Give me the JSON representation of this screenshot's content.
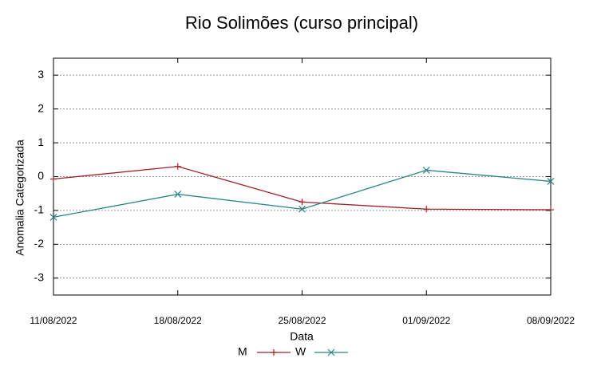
{
  "chart_data": {
    "type": "line",
    "title": "Rio Solimões (curso principal)",
    "x_label": "Data",
    "y_label": "Anomalia Categorizada",
    "categories": [
      "11/08/2022",
      "18/08/2022",
      "25/08/2022",
      "01/09/2022",
      "08/09/2022"
    ],
    "series": [
      {
        "name": "M",
        "color": "#a0202a",
        "marker": "+",
        "values": [
          -0.07,
          0.3,
          -0.75,
          -0.96,
          -0.98
        ]
      },
      {
        "name": "W",
        "color": "#2a8585",
        "marker": "x",
        "values": [
          -1.2,
          -0.52,
          -0.96,
          0.19,
          -0.14
        ]
      }
    ],
    "ylim": [
      -3.5,
      3.5
    ],
    "yticks": [
      -3,
      -2,
      -1,
      0,
      1,
      2,
      3
    ],
    "grid": true,
    "legend": "bottom"
  }
}
